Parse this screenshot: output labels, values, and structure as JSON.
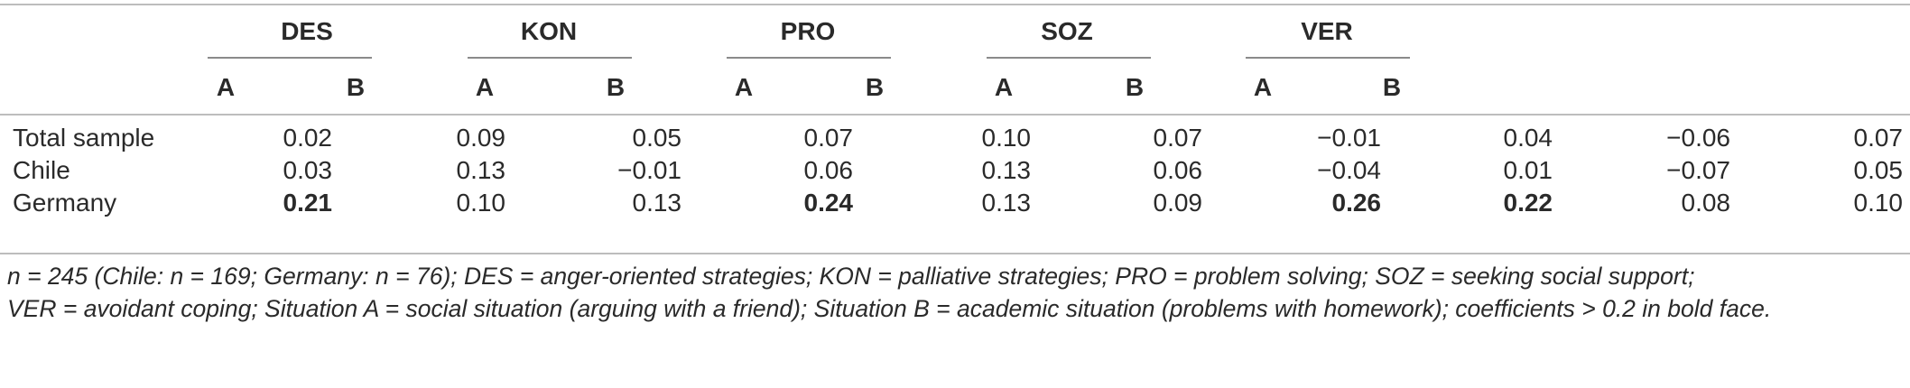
{
  "table": {
    "groups": [
      "DES",
      "KON",
      "PRO",
      "SOZ",
      "VER"
    ],
    "subheaders": [
      "A",
      "B"
    ],
    "rows": [
      {
        "label": "Total sample",
        "values": [
          "0.02",
          "0.09",
          "0.05",
          "0.07",
          "0.10",
          "0.07",
          "−0.01",
          "0.04",
          "−0.06",
          "0.07"
        ],
        "bold": [
          false,
          false,
          false,
          false,
          false,
          false,
          false,
          false,
          false,
          false
        ]
      },
      {
        "label": "Chile",
        "values": [
          "0.03",
          "0.13",
          "−0.01",
          "0.06",
          "0.13",
          "0.06",
          "−0.04",
          "0.01",
          "−0.07",
          "0.05"
        ],
        "bold": [
          false,
          false,
          false,
          false,
          false,
          false,
          false,
          false,
          false,
          false
        ]
      },
      {
        "label": "Germany",
        "values": [
          "0.21",
          "0.10",
          "0.13",
          "0.24",
          "0.13",
          "0.09",
          "0.26",
          "0.22",
          "0.08",
          "0.10"
        ],
        "bold": [
          true,
          false,
          false,
          true,
          false,
          false,
          true,
          true,
          false,
          false
        ]
      }
    ]
  },
  "footnote": {
    "line1": "n = 245 (Chile: n = 169; Germany: n = 76); DES = anger-oriented strategies; KON = palliative strategies; PRO = problem solving; SOZ = seeking social support;",
    "line2": "VER = avoidant coping; Situation A = social situation (arguing with a friend); Situation B = academic situation (problems with homework); coefficients > 0.2 in bold face."
  }
}
